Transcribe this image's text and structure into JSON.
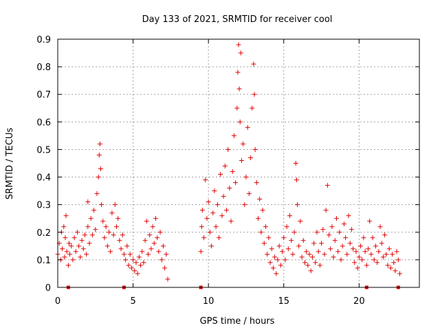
{
  "chart_data": {
    "type": "scatter",
    "title": "Day 133 of 2021, SRMTID for receiver cool",
    "xlabel": "GPS time / hours",
    "ylabel": "SRMTID / TECUs",
    "xlim": [
      0,
      24
    ],
    "ylim": [
      0,
      0.9
    ],
    "xticks": [
      0,
      5,
      10,
      15,
      20
    ],
    "yticks": [
      0,
      0.1,
      0.2,
      0.3,
      0.4,
      0.5,
      0.6,
      0.7,
      0.8,
      0.9
    ],
    "xtick_labels": [
      "0",
      "5",
      "10",
      "15",
      "20"
    ],
    "ytick_labels": [
      "0",
      "0.1",
      "0.2",
      "0.3",
      "0.4",
      "0.5",
      "0.6",
      "0.7",
      "0.8",
      "0.9"
    ],
    "grid": true,
    "marker": "+",
    "color": "#e00000",
    "gap_markers_x": [
      0.7,
      4.4,
      9.5,
      20.5,
      22.6
    ],
    "series": [
      {
        "name": "SRMTID",
        "points": [
          [
            0.0,
            0.12
          ],
          [
            0.1,
            0.16
          ],
          [
            0.2,
            0.1
          ],
          [
            0.25,
            0.2
          ],
          [
            0.3,
            0.14
          ],
          [
            0.4,
            0.22
          ],
          [
            0.45,
            0.11
          ],
          [
            0.5,
            0.18
          ],
          [
            0.55,
            0.26
          ],
          [
            0.6,
            0.13
          ],
          [
            0.7,
            0.08
          ],
          [
            0.75,
            0.16
          ],
          [
            0.8,
            0.12
          ],
          [
            0.9,
            0.15
          ],
          [
            1.0,
            0.1
          ],
          [
            1.1,
            0.18
          ],
          [
            1.2,
            0.13
          ],
          [
            1.3,
            0.2
          ],
          [
            1.4,
            0.15
          ],
          [
            1.5,
            0.11
          ],
          [
            1.6,
            0.17
          ],
          [
            1.7,
            0.14
          ],
          [
            1.8,
            0.19
          ],
          [
            1.9,
            0.12
          ],
          [
            2.0,
            0.22
          ],
          [
            2.0,
            0.31
          ],
          [
            2.1,
            0.16
          ],
          [
            2.2,
            0.25
          ],
          [
            2.3,
            0.19
          ],
          [
            2.4,
            0.28
          ],
          [
            2.5,
            0.21
          ],
          [
            2.6,
            0.34
          ],
          [
            2.7,
            0.4
          ],
          [
            2.75,
            0.48
          ],
          [
            2.8,
            0.52
          ],
          [
            2.85,
            0.43
          ],
          [
            2.9,
            0.3
          ],
          [
            3.0,
            0.24
          ],
          [
            3.1,
            0.18
          ],
          [
            3.2,
            0.22
          ],
          [
            3.3,
            0.15
          ],
          [
            3.4,
            0.2
          ],
          [
            3.5,
            0.13
          ],
          [
            3.6,
            0.27
          ],
          [
            3.7,
            0.19
          ],
          [
            3.8,
            0.3
          ],
          [
            3.9,
            0.22
          ],
          [
            4.0,
            0.25
          ],
          [
            4.1,
            0.17
          ],
          [
            4.2,
            0.14
          ],
          [
            4.3,
            0.19
          ],
          [
            4.4,
            0.12
          ],
          [
            4.5,
            0.1
          ],
          [
            4.6,
            0.15
          ],
          [
            4.7,
            0.08
          ],
          [
            4.8,
            0.12
          ],
          [
            4.9,
            0.07
          ],
          [
            5.0,
            0.1
          ],
          [
            5.1,
            0.06
          ],
          [
            5.2,
            0.09
          ],
          [
            5.3,
            0.05
          ],
          [
            5.4,
            0.11
          ],
          [
            5.5,
            0.08
          ],
          [
            5.6,
            0.13
          ],
          [
            5.7,
            0.09
          ],
          [
            5.8,
            0.17
          ],
          [
            5.9,
            0.24
          ],
          [
            6.0,
            0.12
          ],
          [
            6.1,
            0.19
          ],
          [
            6.2,
            0.14
          ],
          [
            6.3,
            0.22
          ],
          [
            6.4,
            0.16
          ],
          [
            6.5,
            0.25
          ],
          [
            6.6,
            0.18
          ],
          [
            6.7,
            0.13
          ],
          [
            6.8,
            0.2
          ],
          [
            6.9,
            0.1
          ],
          [
            7.0,
            0.15
          ],
          [
            7.1,
            0.07
          ],
          [
            7.2,
            0.12
          ],
          [
            7.3,
            0.03
          ],
          [
            9.5,
            0.13
          ],
          [
            9.55,
            0.22
          ],
          [
            9.6,
            0.28
          ],
          [
            9.7,
            0.18
          ],
          [
            9.8,
            0.39
          ],
          [
            9.9,
            0.25
          ],
          [
            10.0,
            0.31
          ],
          [
            10.1,
            0.2
          ],
          [
            10.2,
            0.15
          ],
          [
            10.3,
            0.27
          ],
          [
            10.4,
            0.35
          ],
          [
            10.5,
            0.22
          ],
          [
            10.6,
            0.3
          ],
          [
            10.7,
            0.18
          ],
          [
            10.8,
            0.41
          ],
          [
            10.9,
            0.26
          ],
          [
            11.0,
            0.33
          ],
          [
            11.1,
            0.44
          ],
          [
            11.2,
            0.28
          ],
          [
            11.3,
            0.5
          ],
          [
            11.4,
            0.36
          ],
          [
            11.5,
            0.24
          ],
          [
            11.6,
            0.42
          ],
          [
            11.7,
            0.55
          ],
          [
            11.8,
            0.38
          ],
          [
            11.9,
            0.65
          ],
          [
            11.95,
            0.78
          ],
          [
            12.0,
            0.88
          ],
          [
            12.05,
            0.72
          ],
          [
            12.1,
            0.6
          ],
          [
            12.15,
            0.85
          ],
          [
            12.2,
            0.46
          ],
          [
            12.3,
            0.52
          ],
          [
            12.4,
            0.3
          ],
          [
            12.5,
            0.4
          ],
          [
            12.6,
            0.58
          ],
          [
            12.7,
            0.34
          ],
          [
            12.8,
            0.47
          ],
          [
            12.9,
            0.65
          ],
          [
            13.0,
            0.81
          ],
          [
            13.05,
            0.7
          ],
          [
            13.1,
            0.5
          ],
          [
            13.2,
            0.38
          ],
          [
            13.3,
            0.25
          ],
          [
            13.4,
            0.32
          ],
          [
            13.5,
            0.2
          ],
          [
            13.6,
            0.28
          ],
          [
            13.7,
            0.16
          ],
          [
            13.8,
            0.22
          ],
          [
            13.9,
            0.12
          ],
          [
            14.0,
            0.18
          ],
          [
            14.1,
            0.09
          ],
          [
            14.2,
            0.14
          ],
          [
            14.3,
            0.07
          ],
          [
            14.4,
            0.11
          ],
          [
            14.5,
            0.05
          ],
          [
            14.6,
            0.1
          ],
          [
            14.7,
            0.15
          ],
          [
            14.8,
            0.08
          ],
          [
            14.9,
            0.13
          ],
          [
            15.0,
            0.18
          ],
          [
            15.1,
            0.1
          ],
          [
            15.2,
            0.22
          ],
          [
            15.3,
            0.14
          ],
          [
            15.4,
            0.26
          ],
          [
            15.5,
            0.17
          ],
          [
            15.6,
            0.12
          ],
          [
            15.7,
            0.2
          ],
          [
            15.8,
            0.45
          ],
          [
            15.85,
            0.39
          ],
          [
            15.9,
            0.3
          ],
          [
            16.0,
            0.15
          ],
          [
            16.1,
            0.24
          ],
          [
            16.2,
            0.11
          ],
          [
            16.3,
            0.17
          ],
          [
            16.4,
            0.09
          ],
          [
            16.5,
            0.13
          ],
          [
            16.6,
            0.08
          ],
          [
            16.7,
            0.12
          ],
          [
            16.8,
            0.06
          ],
          [
            16.9,
            0.11
          ],
          [
            17.0,
            0.16
          ],
          [
            17.1,
            0.09
          ],
          [
            17.2,
            0.2
          ],
          [
            17.3,
            0.13
          ],
          [
            17.4,
            0.08
          ],
          [
            17.5,
            0.16
          ],
          [
            17.6,
            0.21
          ],
          [
            17.7,
            0.12
          ],
          [
            17.8,
            0.28
          ],
          [
            17.9,
            0.37
          ],
          [
            18.0,
            0.19
          ],
          [
            18.1,
            0.14
          ],
          [
            18.2,
            0.22
          ],
          [
            18.3,
            0.11
          ],
          [
            18.4,
            0.17
          ],
          [
            18.5,
            0.25
          ],
          [
            18.6,
            0.13
          ],
          [
            18.7,
            0.2
          ],
          [
            18.8,
            0.1
          ],
          [
            18.9,
            0.15
          ],
          [
            19.0,
            0.23
          ],
          [
            19.1,
            0.18
          ],
          [
            19.2,
            0.12
          ],
          [
            19.3,
            0.26
          ],
          [
            19.4,
            0.16
          ],
          [
            19.5,
            0.21
          ],
          [
            19.6,
            0.14
          ],
          [
            19.7,
            0.09
          ],
          [
            19.8,
            0.13
          ],
          [
            19.9,
            0.07
          ],
          [
            20.0,
            0.11
          ],
          [
            20.1,
            0.15
          ],
          [
            20.2,
            0.1
          ],
          [
            20.3,
            0.18
          ],
          [
            20.4,
            0.13
          ],
          [
            20.5,
            0.08
          ],
          [
            20.6,
            0.14
          ],
          [
            20.7,
            0.24
          ],
          [
            20.8,
            0.12
          ],
          [
            20.9,
            0.18
          ],
          [
            21.0,
            0.1
          ],
          [
            21.1,
            0.15
          ],
          [
            21.2,
            0.09
          ],
          [
            21.3,
            0.13
          ],
          [
            21.4,
            0.22
          ],
          [
            21.5,
            0.16
          ],
          [
            21.6,
            0.11
          ],
          [
            21.7,
            0.19
          ],
          [
            21.8,
            0.12
          ],
          [
            21.9,
            0.08
          ],
          [
            22.0,
            0.14
          ],
          [
            22.1,
            0.07
          ],
          [
            22.2,
            0.12
          ],
          [
            22.3,
            0.09
          ],
          [
            22.4,
            0.06
          ],
          [
            22.5,
            0.13
          ],
          [
            22.6,
            0.1
          ],
          [
            22.7,
            0.05
          ]
        ]
      }
    ]
  }
}
